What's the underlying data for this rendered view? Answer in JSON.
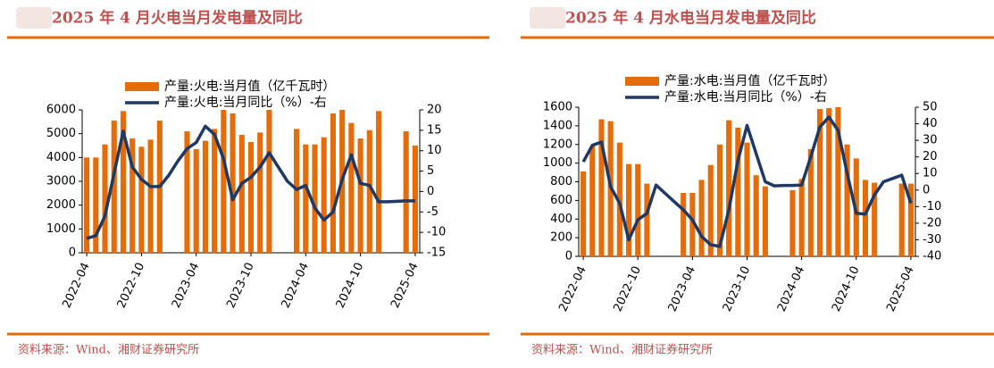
{
  "chart_data": [
    {
      "type": "bar_line",
      "title": "2025 年 4 月火电当月发电量及同比",
      "source": "资料来源：Wind、湘财证券研究所",
      "categories": [
        "2022-04",
        null,
        null,
        null,
        null,
        null,
        "2022-10",
        null,
        null,
        null,
        null,
        null,
        "2023-04",
        null,
        null,
        null,
        null,
        null,
        "2023-10",
        null,
        null,
        null,
        null,
        null,
        "2024-04",
        null,
        null,
        null,
        null,
        null,
        "2024-10",
        null,
        null,
        null,
        null,
        null,
        "2025-04"
      ],
      "series": [
        {
          "name": "产量:火电:当月值（亿千瓦时）",
          "color": "#e46c0a",
          "kind": "bar",
          "values": [
            4000,
            4000,
            4550,
            5550,
            5950,
            4800,
            4450,
            4750,
            5550,
            null,
            null,
            5100,
            4350,
            4700,
            5200,
            6000,
            5850,
            4950,
            4650,
            5050,
            6000,
            null,
            null,
            5200,
            4550,
            4550,
            4850,
            5850,
            6000,
            5450,
            4800,
            5150,
            5950,
            null,
            null,
            5100,
            4500
          ]
        },
        {
          "name": "产量:火电:当月同比（%）-右",
          "color": "#1f3864",
          "kind": "line",
          "axis": "y2",
          "values": [
            -11.5,
            -10.8,
            -6,
            4.5,
            14.8,
            6,
            3,
            1.2,
            1.2,
            4,
            7.5,
            10.5,
            12,
            16,
            14,
            8,
            -2,
            2,
            3.5,
            6,
            9.5,
            6,
            2.5,
            0.5,
            1.5,
            -4,
            -7,
            -5,
            3,
            9,
            2,
            1.5,
            -2.5,
            -2.5,
            -2.4,
            -2.3,
            -2.3
          ]
        }
      ],
      "ylim": [
        0,
        6000
      ],
      "yticks": [
        0,
        1000,
        2000,
        3000,
        4000,
        5000,
        6000
      ],
      "y2lim": [
        -15,
        20
      ],
      "y2ticks": [
        -15,
        -10,
        -5,
        0,
        5,
        10,
        15,
        20
      ]
    },
    {
      "type": "bar_line",
      "title": "2025 年 4 月水电当月发电量及同比",
      "source": "资料来源：Wind、湘财证券研究所",
      "categories": [
        "2022-04",
        null,
        null,
        null,
        null,
        null,
        "2022-10",
        null,
        null,
        null,
        null,
        null,
        "2023-04",
        null,
        null,
        null,
        null,
        null,
        "2023-10",
        null,
        null,
        null,
        null,
        null,
        "2024-04",
        null,
        null,
        null,
        null,
        null,
        "2024-10",
        null,
        null,
        null,
        null,
        null,
        "2025-04"
      ],
      "series": [
        {
          "name": "产量:水电:当月值（亿千瓦时）",
          "color": "#e46c0a",
          "kind": "bar",
          "values": [
            910,
            1180,
            1470,
            1450,
            1220,
            990,
            990,
            780,
            null,
            null,
            null,
            680,
            680,
            820,
            980,
            1200,
            1460,
            1380,
            1220,
            870,
            750,
            null,
            null,
            710,
            830,
            1150,
            1580,
            1590,
            1600,
            1200,
            1050,
            820,
            790,
            null,
            null,
            780,
            780
          ]
        },
        {
          "name": "产量:水电:当月同比（%）-右",
          "color": "#1f3864",
          "kind": "line",
          "axis": "y2",
          "values": [
            17,
            27,
            29,
            2,
            -8,
            -30,
            -18,
            -14,
            3,
            -2,
            -7,
            -12,
            -18,
            -28,
            -33,
            -34,
            -12,
            18,
            39,
            22,
            5,
            2.5,
            2.8,
            2.8,
            3,
            20,
            38,
            44,
            36,
            10,
            -14,
            -14.5,
            -3,
            5,
            7,
            9,
            -8
          ]
        }
      ],
      "ylim": [
        0,
        1600
      ],
      "yticks": [
        0,
        200,
        400,
        600,
        800,
        1000,
        1200,
        1400,
        1600
      ],
      "y2lim": [
        -40,
        50
      ],
      "y2ticks": [
        -40,
        -30,
        -20,
        -10,
        0,
        10,
        20,
        30,
        40,
        50
      ]
    }
  ]
}
